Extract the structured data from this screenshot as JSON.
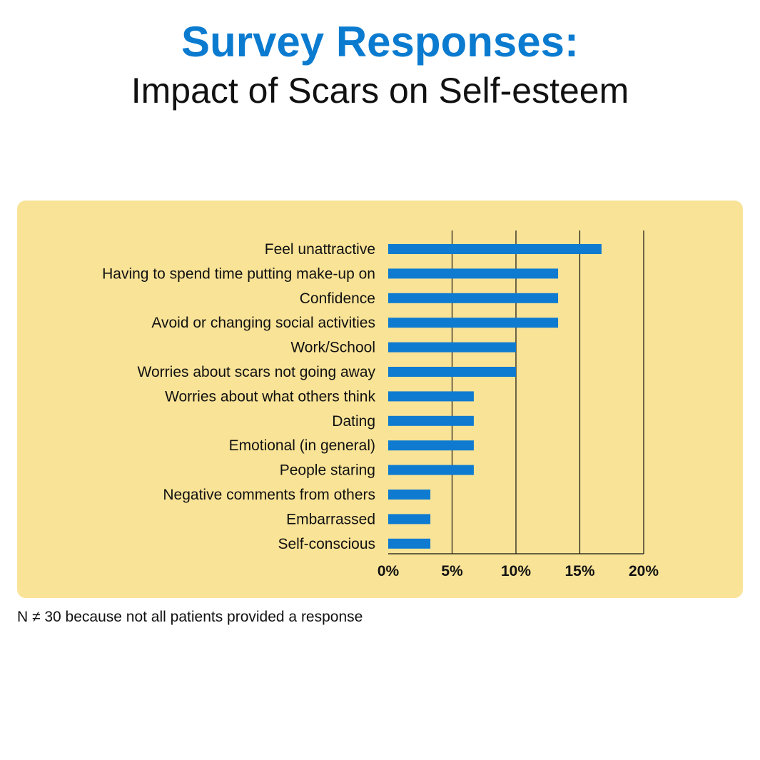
{
  "title": "Survey Responses:",
  "subtitle": "Impact of Scars on Self-esteem",
  "footnote": "N ≠ 30 because not all patients provided a response",
  "colors": {
    "bar": "#0f7bd0",
    "panel": "#f9e397",
    "title": "#0b7bd0"
  },
  "chart_data": {
    "type": "bar",
    "orientation": "horizontal",
    "categories": [
      "Feel unattractive",
      "Having to spend time putting make-up on",
      "Confidence",
      "Avoid or changing social activities",
      "Work/School",
      "Worries about scars not going away",
      "Worries about what others think",
      "Dating",
      "Emotional (in general)",
      "People staring",
      "Negative comments from others",
      "Embarrassed",
      "Self-conscious"
    ],
    "values": [
      16.7,
      13.3,
      13.3,
      13.3,
      10,
      10,
      6.7,
      6.7,
      6.7,
      6.7,
      3.3,
      3.3,
      3.3
    ],
    "xlim": [
      0,
      20
    ],
    "xticks": [
      0,
      5,
      10,
      15,
      20
    ],
    "xtick_labels": [
      "0%",
      "5%",
      "10%",
      "15%",
      "20%"
    ],
    "grid": true,
    "xlabel": "",
    "ylabel": ""
  }
}
